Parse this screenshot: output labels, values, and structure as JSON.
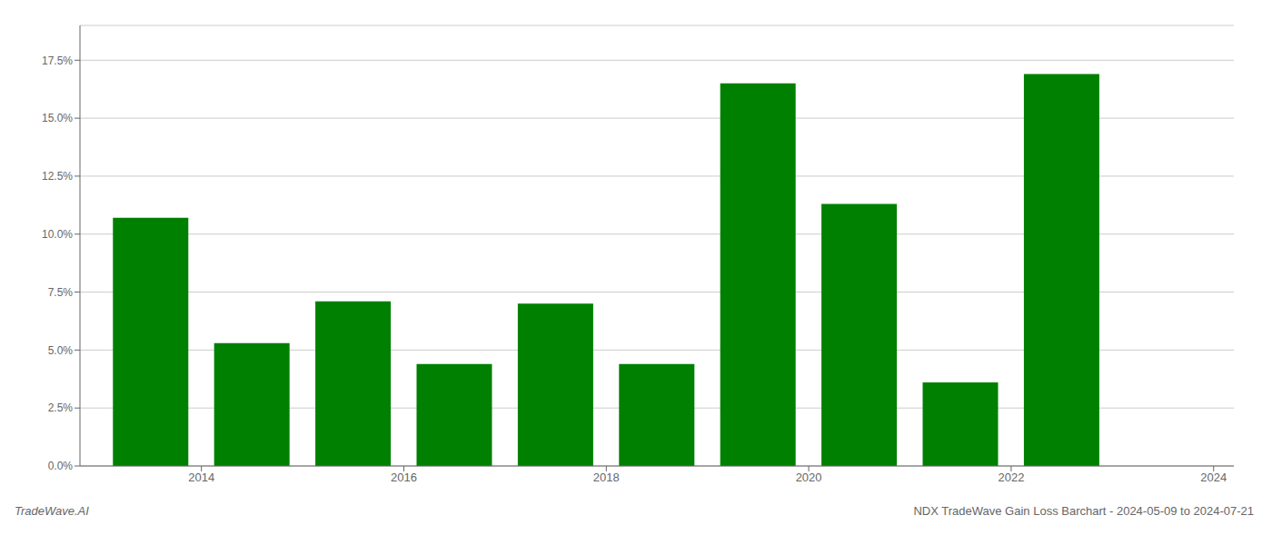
{
  "chart_data": {
    "type": "bar",
    "x": [
      2014,
      2015,
      2016,
      2017,
      2018,
      2019,
      2020,
      2021,
      2022,
      2023
    ],
    "values": [
      0.107,
      0.053,
      0.071,
      0.044,
      0.07,
      0.044,
      0.165,
      0.113,
      0.036,
      0.169
    ],
    "color": "#008000",
    "xlim": [
      2013.3,
      2024.7
    ],
    "xticks": [
      {
        "value": 2014.5,
        "label": "2014"
      },
      {
        "value": 2016.5,
        "label": "2016"
      },
      {
        "value": 2018.5,
        "label": "2018"
      },
      {
        "value": 2020.5,
        "label": "2020"
      },
      {
        "value": 2022.5,
        "label": "2022"
      },
      {
        "value": 2024.5,
        "label": "2024"
      }
    ],
    "ylim": [
      0,
      0.19
    ],
    "yticks": [
      {
        "value": 0.0,
        "label": "0.0%"
      },
      {
        "value": 0.025,
        "label": "2.5%"
      },
      {
        "value": 0.05,
        "label": "5.0%"
      },
      {
        "value": 0.075,
        "label": "7.5%"
      },
      {
        "value": 0.1,
        "label": "10.0%"
      },
      {
        "value": 0.125,
        "label": "12.5%"
      },
      {
        "value": 0.15,
        "label": "15.0%"
      },
      {
        "value": 0.175,
        "label": "17.5%"
      }
    ],
    "grid": true,
    "annotations": [
      "TradeWave.AI",
      "NDX TradeWave Gain Loss Barchart - 2024-05-09 to 2024-07-21"
    ]
  }
}
